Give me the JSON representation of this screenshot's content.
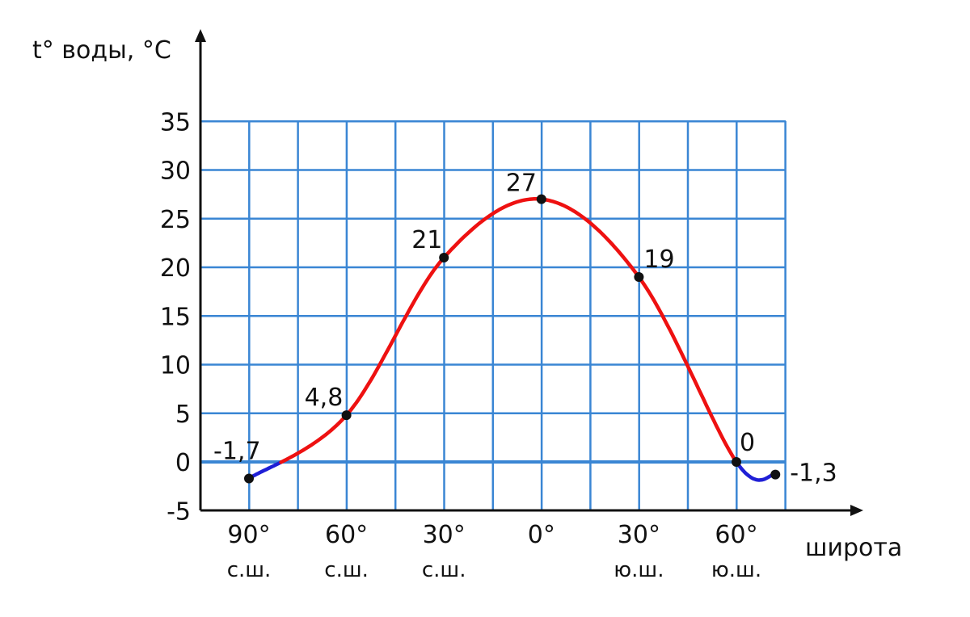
{
  "colors": {
    "grid": "#3a86d4",
    "positive_line": "#ee1111",
    "negative_line": "#1f1fd6",
    "axis": "#111111",
    "point": "#111111"
  },
  "chart_data": {
    "type": "line",
    "ylabel": "t° воды, °C",
    "xlabel": "широта",
    "ylim": [
      -5,
      35
    ],
    "yticks": [
      "35",
      "30",
      "25",
      "20",
      "15",
      "10",
      "5",
      "0",
      "-5"
    ],
    "x_ticks": [
      {
        "deg": "90°",
        "hemi": "с.ш."
      },
      {
        "deg": "60°",
        "hemi": "с.ш."
      },
      {
        "deg": "30°",
        "hemi": "с.ш."
      },
      {
        "deg": "0°",
        "hemi": ""
      },
      {
        "deg": "30°",
        "hemi": "ю.ш."
      },
      {
        "deg": "60°",
        "hemi": "ю.ш."
      }
    ],
    "grid": true,
    "series": [
      {
        "points": [
          {
            "lat": 90,
            "value": -1.7,
            "label": "-1,7"
          },
          {
            "lat": 60,
            "value": 4.8,
            "label": "4,8"
          },
          {
            "lat": 30,
            "value": 21,
            "label": "21"
          },
          {
            "lat": 0,
            "value": 27,
            "label": "27"
          },
          {
            "lat": -30,
            "value": 19,
            "label": "19"
          },
          {
            "lat": -60,
            "value": 0,
            "label": "0"
          },
          {
            "lat": -72,
            "value": -1.3,
            "label": "-1,3"
          }
        ]
      }
    ]
  }
}
